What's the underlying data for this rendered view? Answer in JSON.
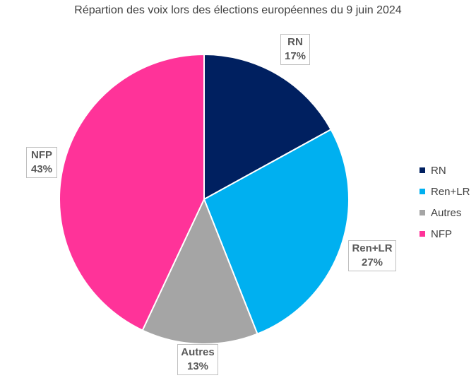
{
  "chart_data": {
    "type": "pie",
    "title": "Répartion des voix lors des élections européennes du 9 juin 2024",
    "slices": [
      {
        "name": "RN",
        "value": 17,
        "label": "17%",
        "color": "#002060"
      },
      {
        "name": "Ren+LR",
        "value": 27,
        "label": "27%",
        "color": "#00b0f0"
      },
      {
        "name": "Autres",
        "value": 13,
        "label": "13%",
        "color": "#a5a5a5"
      },
      {
        "name": "NFP",
        "value": 43,
        "label": "43%",
        "color": "#ff3399"
      }
    ],
    "legend_position": "right"
  }
}
